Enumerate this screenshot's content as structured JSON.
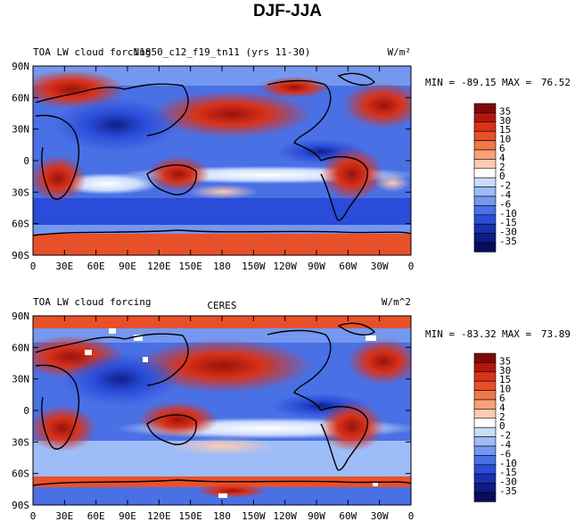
{
  "figure_title": "DJF-JJA",
  "colorbar": {
    "levels": [
      "35",
      "30",
      "15",
      "10",
      "6",
      "4",
      "2",
      "0",
      "-2",
      "-4",
      "-6",
      "-10",
      "-15",
      "-30",
      "-35"
    ],
    "colors": [
      "#7d0a0a",
      "#b5160a",
      "#d8321a",
      "#e8502a",
      "#f07848",
      "#f8a278",
      "#fcccb0",
      "#ffffff",
      "#cadcfc",
      "#9ebcf8",
      "#7498f0",
      "#4a70e6",
      "#2a4cd8",
      "#1830b0",
      "#0c1c82",
      "#060e5a"
    ]
  },
  "chart_data": [
    {
      "type": "heatmap",
      "title_left": "TOA LW cloud forcing",
      "title_center": "N1850_c12_f19_tn11 (yrs 11-30)",
      "units": "W/m²",
      "stats": {
        "min_label": "MIN =",
        "min": "-89.15",
        "max_label": "MAX =",
        "max": "76.52"
      },
      "x_ticks": [
        "0",
        "30E",
        "60E",
        "90E",
        "120E",
        "150E",
        "180",
        "150W",
        "120W",
        "90W",
        "60W",
        "30W",
        "0"
      ],
      "y_ticks": [
        "90N",
        "60N",
        "30N",
        "0",
        "30S",
        "60S",
        "90S"
      ],
      "xlim": [
        0,
        360
      ],
      "ylim": [
        -90,
        90
      ]
    },
    {
      "type": "heatmap",
      "title_left": "TOA LW cloud forcing",
      "title_center": "CERES",
      "units": "W/m^2",
      "stats": {
        "min_label": "MIN =",
        "min": "-83.32",
        "max_label": "MAX =",
        "max": "73.89"
      },
      "x_ticks": [
        "0",
        "30E",
        "60E",
        "90E",
        "120E",
        "150E",
        "180",
        "150W",
        "120W",
        "90W",
        "60W",
        "30W",
        "0"
      ],
      "y_ticks": [
        "90N",
        "60N",
        "30N",
        "0",
        "30S",
        "60S",
        "90S"
      ],
      "xlim": [
        0,
        360
      ],
      "ylim": [
        -90,
        90
      ]
    }
  ]
}
